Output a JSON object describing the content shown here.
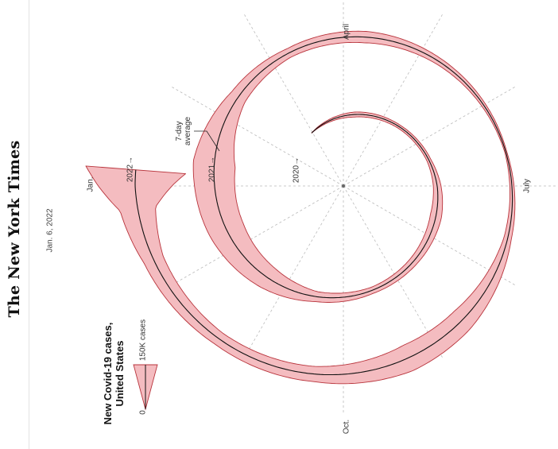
{
  "header": {
    "masthead": "The New York Times",
    "date": "Jan. 6, 2022"
  },
  "colors": {
    "band_fill": "#f4bcc0",
    "band_stroke": "#b8333b",
    "line": "#111111",
    "grid": "#bbbbbb"
  },
  "chart_data": {
    "type": "area",
    "title": "New Covid-19 cases, United States",
    "title_lines": [
      "New Covid-19 cases,",
      "United States"
    ],
    "layout": "spiral",
    "period": "1 year per revolution",
    "months": [
      "Jan.",
      "April",
      "July",
      "Oct."
    ],
    "series_labels": {
      "avg": "7-day average",
      "avg_lines": [
        "7-day",
        "average"
      ],
      "years": [
        "2020",
        "2021",
        "2022"
      ]
    },
    "legend": {
      "zero": "0",
      "max": "150K cases"
    },
    "units": "cases per day",
    "series": [
      {
        "name": "7-day average",
        "x": [
          "2020-03-01",
          "2020-04-10",
          "2020-05-15",
          "2020-06-15",
          "2020-07-20",
          "2020-08-20",
          "2020-09-15",
          "2020-10-15",
          "2020-11-10",
          "2020-12-10",
          "2021-01-10",
          "2021-02-10",
          "2021-03-10",
          "2021-04-10",
          "2021-05-10",
          "2021-06-20",
          "2021-07-20",
          "2021-08-20",
          "2021-09-10",
          "2021-10-10",
          "2021-11-10",
          "2021-12-10",
          "2021-12-25",
          "2022-01-05"
        ],
        "values": [
          1000,
          30000,
          22000,
          25000,
          68000,
          48000,
          38000,
          60000,
          140000,
          210000,
          250000,
          100000,
          55000,
          68000,
          40000,
          12000,
          45000,
          140000,
          160000,
          90000,
          80000,
          120000,
          210000,
          590000
        ]
      }
    ]
  }
}
